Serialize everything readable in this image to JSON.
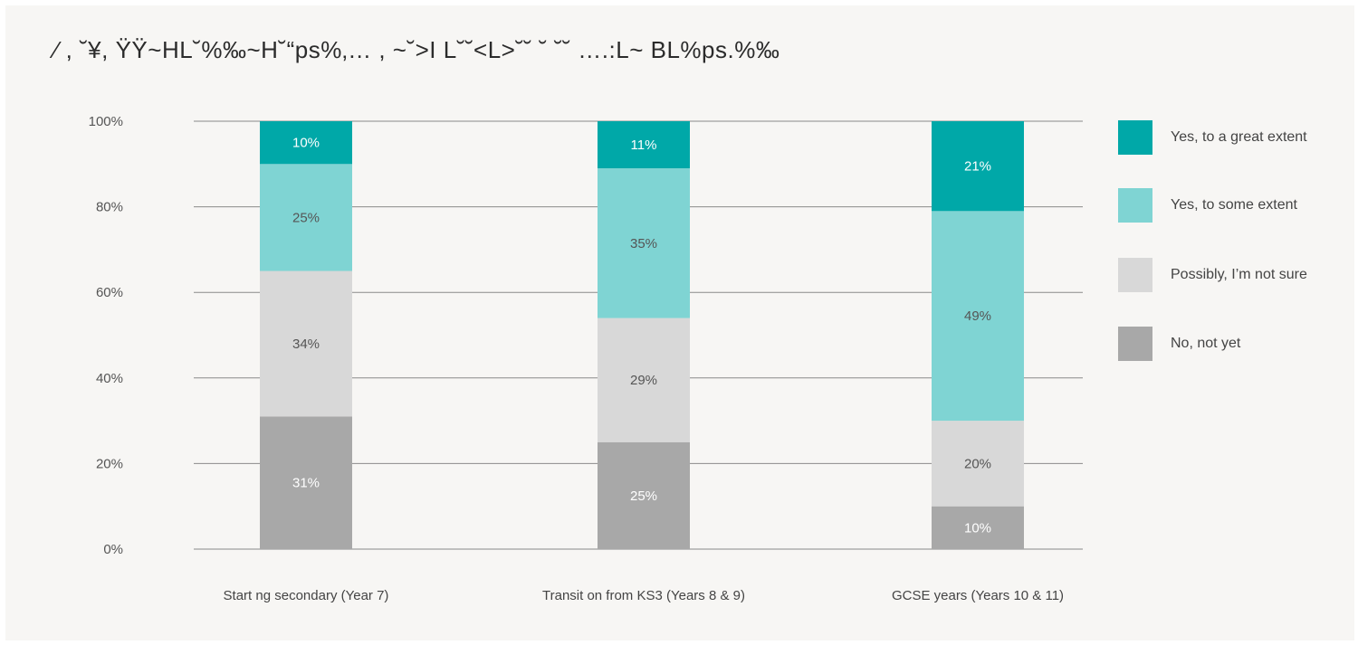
{
  "title": "⁄ , ˘¥, ŸŸ~HL˘%‰~H˘“ps%‚… , ~˘>I L˘˘<L>˘˘  ˘ ˘˘ ….:L~ BL%ps.%‰",
  "chart_data": {
    "type": "bar",
    "stacked": true,
    "categories": [
      "Start ng secondary (Year 7)",
      "Transit on from KS3 (Years 8 & 9)",
      "GCSE years (Years 10 & 11)"
    ],
    "series": [
      {
        "name": "No, not yet",
        "values": [
          31,
          25,
          10
        ],
        "color": "#a8a8a8",
        "label_color": "#ffffff"
      },
      {
        "name": "Possibly, I’m not sure",
        "values": [
          34,
          29,
          20
        ],
        "color": "#d8d8d8",
        "label_color": "#555555"
      },
      {
        "name": "Yes, to some extent",
        "values": [
          25,
          35,
          49
        ],
        "color": "#7fd4d3",
        "label_color": "#555555"
      },
      {
        "name": "Yes, to a great extent",
        "values": [
          10,
          11,
          21
        ],
        "color": "#00a8a8",
        "label_color": "#ffffff"
      }
    ],
    "yticks": [
      "0%",
      "20%",
      "40%",
      "60%",
      "80%",
      "100%"
    ],
    "ylim": [
      0,
      100
    ],
    "grid": true,
    "legend_position": "right"
  },
  "legend": [
    {
      "label": "Yes, to a great extent",
      "color": "#00a8a8"
    },
    {
      "label": "Yes, to some extent",
      "color": "#7fd4d3"
    },
    {
      "label": "Possibly, I’m not sure",
      "color": "#d8d8d8"
    },
    {
      "label": "No, not yet",
      "color": "#a8a8a8"
    }
  ]
}
